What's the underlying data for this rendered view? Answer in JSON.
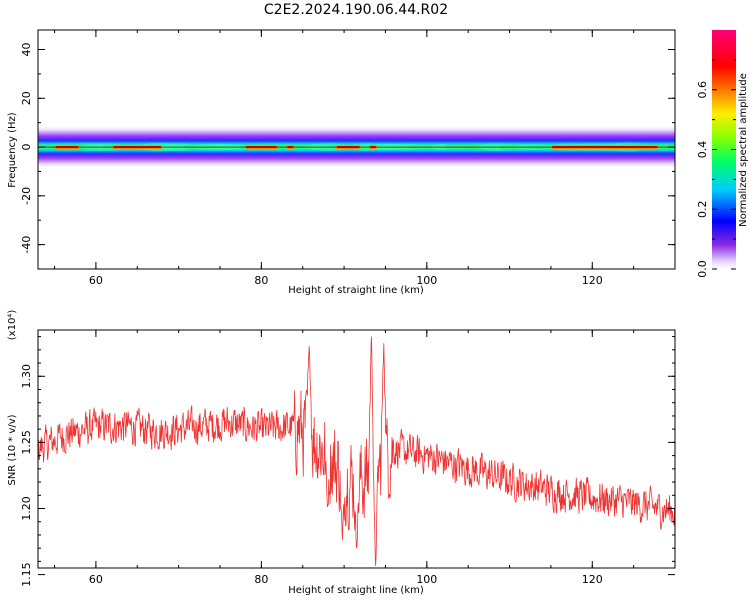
{
  "figure_title": "C2E2.2024.190.06.44.R02",
  "chart_data": [
    {
      "type": "heatmap",
      "xlabel": "Height of straight line (km)",
      "ylabel": "Frequency (Hz)",
      "xlim": [
        53,
        130
      ],
      "ylim": [
        -50,
        48
      ],
      "xticks": [
        60,
        80,
        100,
        120
      ],
      "yticks": [
        -40,
        -20,
        0,
        20,
        40
      ],
      "colorbar_label": "Normalized spectral amplitude",
      "colorbar_ticks": [
        0.0,
        0.2,
        0.4,
        0.6
      ],
      "colorbar_range": [
        0.0,
        0.8
      ],
      "colorscale": "rainbow (white-violet-blue-cyan-green-yellow-red-magenta)",
      "band": {
        "center_hz": 0,
        "half_width_hz": 4.5,
        "peak_amplitude_regions_km": [
          [
            55,
            58
          ],
          [
            62,
            68
          ],
          [
            78,
            82
          ],
          [
            83,
            84
          ],
          [
            89,
            92
          ],
          [
            93,
            94
          ],
          [
            115,
            128
          ]
        ]
      }
    },
    {
      "type": "line",
      "xlabel": "Height of straight line (km)",
      "ylabel": "SNR (10 * v/v)",
      "y_multiplier": "(x10⁴)",
      "xlim": [
        53,
        130
      ],
      "ylim": [
        1.155,
        1.335
      ],
      "xticks": [
        60,
        80,
        100,
        120
      ],
      "yticks": [
        1.15,
        1.2,
        1.25,
        1.3
      ],
      "ytick_labels": [
        "1.15",
        "1.20",
        "1.25",
        "1.30"
      ],
      "line_color": "#ee3333",
      "trend": {
        "x": [
          53,
          56,
          60,
          64,
          68,
          72,
          76,
          80,
          84,
          86,
          88,
          90,
          92,
          94,
          96,
          100,
          104,
          108,
          112,
          116,
          120,
          124,
          128,
          130
        ],
        "y": [
          1.245,
          1.255,
          1.262,
          1.262,
          1.258,
          1.262,
          1.265,
          1.26,
          1.262,
          1.255,
          1.24,
          1.225,
          1.22,
          1.23,
          1.245,
          1.24,
          1.232,
          1.225,
          1.218,
          1.212,
          1.208,
          1.205,
          1.2,
          1.198
        ]
      },
      "spikes": [
        {
          "x": 85.8,
          "y": 1.325
        },
        {
          "x": 88.0,
          "y": 1.2
        },
        {
          "x": 89.8,
          "y": 1.175
        },
        {
          "x": 91.5,
          "y": 1.17
        },
        {
          "x": 93.3,
          "y": 1.335
        },
        {
          "x": 93.8,
          "y": 1.155
        },
        {
          "x": 94.8,
          "y": 1.325
        }
      ]
    }
  ]
}
